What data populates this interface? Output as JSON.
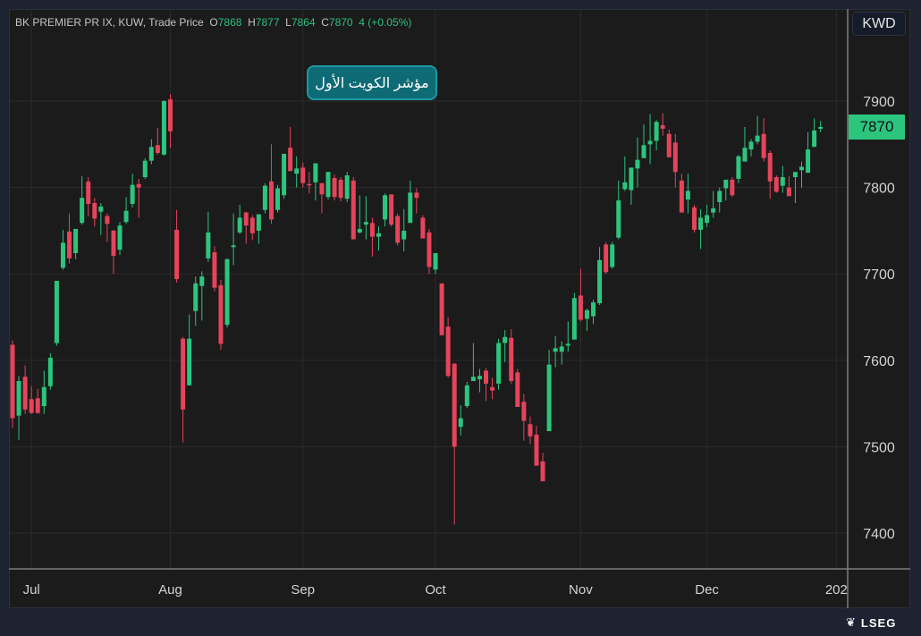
{
  "legend": {
    "symbol": "BK PREMIER PR IX, KUW, Trade Price",
    "open_label": "O",
    "open": "7868",
    "high_label": "H",
    "high": "7877",
    "low_label": "L",
    "low": "7864",
    "close_label": "C",
    "close": "7870",
    "change": "4 (+0.05%)"
  },
  "annotation": "مؤشر الكويت الأول",
  "currency": "KWD",
  "last_price": "7870",
  "logo_text": "LSEG",
  "colors": {
    "up": "#2cc57e",
    "down": "#e5445b",
    "grid": "#2b2b2b",
    "axis": "#7c7c7c"
  },
  "chart_data": {
    "type": "candlestick",
    "title": "BK PREMIER PR IX, KUW, Trade Price",
    "ylim": [
      7360,
      7950
    ],
    "y_ticks": [
      7400,
      7500,
      7600,
      7700,
      7800,
      7900
    ],
    "y_tick_labels": [
      "7400",
      "7500",
      "7600",
      "7700",
      "7800",
      "7900"
    ],
    "x_ticks": [
      {
        "label": "Jul",
        "index": 3
      },
      {
        "label": "Aug",
        "index": 25
      },
      {
        "label": "Sep",
        "index": 46
      },
      {
        "label": "Oct",
        "index": 67
      },
      {
        "label": "Nov",
        "index": 90
      },
      {
        "label": "Dec",
        "index": 110
      },
      {
        "label": "202",
        "index": 130.5
      }
    ],
    "grid": true,
    "ohlc_fields": [
      "open",
      "high",
      "low",
      "close"
    ],
    "candles": [
      [
        7618,
        7623,
        7522,
        7533
      ],
      [
        7536,
        7582,
        7508,
        7576
      ],
      [
        7581,
        7594,
        7538,
        7543
      ],
      [
        7555,
        7570,
        7538,
        7539
      ],
      [
        7556,
        7567,
        7538,
        7539
      ],
      [
        7547,
        7588,
        7538,
        7569
      ],
      [
        7570,
        7608,
        7566,
        7603
      ],
      [
        7620,
        7692,
        7617,
        7692
      ],
      [
        7707,
        7751,
        7705,
        7736
      ],
      [
        7749,
        7770,
        7712,
        7718
      ],
      [
        7724,
        7752,
        7717,
        7752
      ],
      [
        7759,
        7813,
        7757,
        7788
      ],
      [
        7807,
        7812,
        7767,
        7781
      ],
      [
        7782,
        7788,
        7755,
        7764
      ],
      [
        7772,
        7782,
        7745,
        7778
      ],
      [
        7767,
        7770,
        7737,
        7758
      ],
      [
        7750,
        7751,
        7700,
        7721
      ],
      [
        7728,
        7760,
        7722,
        7756
      ],
      [
        7760,
        7789,
        7758,
        7773
      ],
      [
        7781,
        7816,
        7777,
        7803
      ],
      [
        7804,
        7810,
        7765,
        7800
      ],
      [
        7812,
        7834,
        7810,
        7831
      ],
      [
        7831,
        7856,
        7827,
        7847
      ],
      [
        7849,
        7869,
        7838,
        7840
      ],
      [
        7838,
        7901,
        7837,
        7900
      ],
      [
        7902,
        7908,
        7846,
        7865
      ],
      [
        7751,
        7774,
        7690,
        7694
      ],
      [
        7625,
        7627,
        7505,
        7543
      ],
      [
        7571,
        7653,
        7571,
        7625
      ],
      [
        7657,
        7697,
        7640,
        7689
      ],
      [
        7686,
        7703,
        7646,
        7697
      ],
      [
        7718,
        7772,
        7714,
        7748
      ],
      [
        7725,
        7732,
        7680,
        7684
      ],
      [
        7687,
        7693,
        7612,
        7619
      ],
      [
        7641,
        7718,
        7638,
        7717
      ],
      [
        7731,
        7770,
        7710,
        7733
      ],
      [
        7748,
        7780,
        7746,
        7765
      ],
      [
        7771,
        7772,
        7735,
        7756
      ],
      [
        7765,
        7768,
        7739,
        7747
      ],
      [
        7750,
        7769,
        7735,
        7769
      ],
      [
        7774,
        7805,
        7770,
        7802
      ],
      [
        7807,
        7850,
        7758,
        7763
      ],
      [
        7774,
        7803,
        7771,
        7799
      ],
      [
        7791,
        7839,
        7787,
        7839
      ],
      [
        7846,
        7870,
        7819,
        7819
      ],
      [
        7816,
        7836,
        7800,
        7822
      ],
      [
        7823,
        7829,
        7800,
        7805
      ],
      [
        7804,
        7818,
        7793,
        7803
      ],
      [
        7806,
        7828,
        7785,
        7828
      ],
      [
        7805,
        7805,
        7770,
        7792
      ],
      [
        7789,
        7818,
        7786,
        7818
      ],
      [
        7811,
        7815,
        7785,
        7789
      ],
      [
        7809,
        7812,
        7784,
        7788
      ],
      [
        7787,
        7818,
        7783,
        7814
      ],
      [
        7808,
        7812,
        7740,
        7740
      ],
      [
        7748,
        7791,
        7747,
        7752
      ],
      [
        7757,
        7790,
        7740,
        7760
      ],
      [
        7759,
        7765,
        7720,
        7743
      ],
      [
        7743,
        7755,
        7727,
        7747
      ],
      [
        7763,
        7793,
        7755,
        7791
      ],
      [
        7792,
        7792,
        7755,
        7757
      ],
      [
        7767,
        7770,
        7733,
        7736
      ],
      [
        7740,
        7775,
        7726,
        7750
      ],
      [
        7759,
        7808,
        7759,
        7794
      ],
      [
        7794,
        7799,
        7770,
        7788
      ],
      [
        7765,
        7768,
        7741,
        7741
      ],
      [
        7748,
        7752,
        7700,
        7708
      ],
      [
        7705,
        7724,
        7700,
        7724
      ],
      [
        7689,
        7689,
        7629,
        7629
      ],
      [
        7639,
        7650,
        7580,
        7582
      ],
      [
        7596,
        7597,
        7410,
        7500
      ],
      [
        7523,
        7548,
        7513,
        7533
      ],
      [
        7547,
        7575,
        7545,
        7571
      ],
      [
        7576,
        7620,
        7576,
        7581
      ],
      [
        7578,
        7590,
        7563,
        7582
      ],
      [
        7588,
        7591,
        7553,
        7573
      ],
      [
        7569,
        7580,
        7555,
        7565
      ],
      [
        7573,
        7625,
        7566,
        7620
      ],
      [
        7620,
        7635,
        7598,
        7627
      ],
      [
        7626,
        7636,
        7573,
        7576
      ],
      [
        7586,
        7590,
        7546,
        7546
      ],
      [
        7552,
        7561,
        7507,
        7530
      ],
      [
        7526,
        7535,
        7503,
        7512
      ],
      [
        7514,
        7524,
        7478,
        7478
      ],
      [
        7483,
        7493,
        7460,
        7460
      ],
      [
        7518,
        7612,
        7518,
        7595
      ],
      [
        7610,
        7628,
        7592,
        7614
      ],
      [
        7610,
        7622,
        7595,
        7616
      ],
      [
        7617,
        7645,
        7610,
        7619
      ],
      [
        7624,
        7678,
        7624,
        7672
      ],
      [
        7675,
        7706,
        7645,
        7647
      ],
      [
        7648,
        7660,
        7634,
        7658
      ],
      [
        7651,
        7670,
        7642,
        7667
      ],
      [
        7666,
        7731,
        7664,
        7716
      ],
      [
        7734,
        7737,
        7700,
        7702
      ],
      [
        7708,
        7737,
        7706,
        7734
      ],
      [
        7742,
        7808,
        7740,
        7785
      ],
      [
        7798,
        7836,
        7796,
        7806
      ],
      [
        7797,
        7823,
        7780,
        7823
      ],
      [
        7822,
        7858,
        7800,
        7832
      ],
      [
        7834,
        7873,
        7834,
        7849
      ],
      [
        7850,
        7885,
        7827,
        7854
      ],
      [
        7854,
        7878,
        7843,
        7876
      ],
      [
        7872,
        7886,
        7860,
        7868
      ],
      [
        7862,
        7867,
        7835,
        7835
      ],
      [
        7852,
        7862,
        7800,
        7818
      ],
      [
        7808,
        7816,
        7771,
        7771
      ],
      [
        7786,
        7816,
        7770,
        7796
      ],
      [
        7777,
        7780,
        7748,
        7751
      ],
      [
        7751,
        7775,
        7729,
        7765
      ],
      [
        7759,
        7780,
        7754,
        7768
      ],
      [
        7771,
        7796,
        7765,
        7776
      ],
      [
        7783,
        7800,
        7771,
        7796
      ],
      [
        7799,
        7809,
        7785,
        7809
      ],
      [
        7809,
        7812,
        7789,
        7791
      ],
      [
        7810,
        7838,
        7805,
        7836
      ],
      [
        7830,
        7870,
        7830,
        7846
      ],
      [
        7844,
        7856,
        7836,
        7853
      ],
      [
        7853,
        7883,
        7850,
        7860
      ],
      [
        7862,
        7880,
        7830,
        7834
      ],
      [
        7840,
        7843,
        7787,
        7807
      ],
      [
        7812,
        7814,
        7794,
        7795
      ],
      [
        7802,
        7825,
        7794,
        7812
      ],
      [
        7800,
        7813,
        7790,
        7790
      ],
      [
        7812,
        7818,
        7782,
        7818
      ],
      [
        7820,
        7830,
        7800,
        7824
      ],
      [
        7817,
        7864,
        7817,
        7844
      ],
      [
        7847,
        7880,
        7847,
        7866
      ],
      [
        7868,
        7877,
        7864,
        7870
      ]
    ]
  }
}
